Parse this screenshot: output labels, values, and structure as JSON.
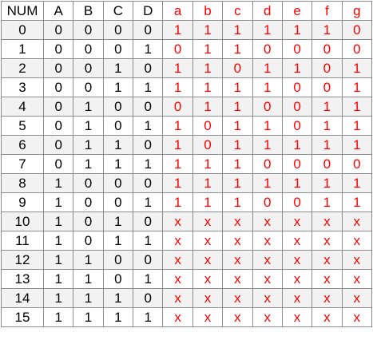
{
  "headers": [
    "NUM",
    "A",
    "B",
    "C",
    "D",
    "a",
    "b",
    "c",
    "d",
    "e",
    "f",
    "g"
  ],
  "input_count": 5,
  "colors": {
    "input_text": "#000000",
    "output_text": "#ff0000",
    "stripe": "#f2f2f2",
    "grid": "#8c8c8c"
  },
  "rows": [
    [
      "0",
      "0",
      "0",
      "0",
      "0",
      "1",
      "1",
      "1",
      "1",
      "1",
      "1",
      "0"
    ],
    [
      "1",
      "0",
      "0",
      "0",
      "1",
      "0",
      "1",
      "1",
      "0",
      "0",
      "0",
      "0"
    ],
    [
      "2",
      "0",
      "0",
      "1",
      "0",
      "1",
      "1",
      "0",
      "1",
      "1",
      "0",
      "1"
    ],
    [
      "3",
      "0",
      "0",
      "1",
      "1",
      "1",
      "1",
      "1",
      "1",
      "0",
      "0",
      "1"
    ],
    [
      "4",
      "0",
      "1",
      "0",
      "0",
      "0",
      "1",
      "1",
      "0",
      "0",
      "1",
      "1"
    ],
    [
      "5",
      "0",
      "1",
      "0",
      "1",
      "1",
      "0",
      "1",
      "1",
      "0",
      "1",
      "1"
    ],
    [
      "6",
      "0",
      "1",
      "1",
      "0",
      "1",
      "0",
      "1",
      "1",
      "1",
      "1",
      "1"
    ],
    [
      "7",
      "0",
      "1",
      "1",
      "1",
      "1",
      "1",
      "1",
      "0",
      "0",
      "0",
      "0"
    ],
    [
      "8",
      "1",
      "0",
      "0",
      "0",
      "1",
      "1",
      "1",
      "1",
      "1",
      "1",
      "1"
    ],
    [
      "9",
      "1",
      "0",
      "0",
      "1",
      "1",
      "1",
      "1",
      "0",
      "0",
      "1",
      "1"
    ],
    [
      "10",
      "1",
      "0",
      "1",
      "0",
      "x",
      "x",
      "x",
      "x",
      "x",
      "x",
      "x"
    ],
    [
      "11",
      "1",
      "0",
      "1",
      "1",
      "x",
      "x",
      "x",
      "x",
      "x",
      "x",
      "x"
    ],
    [
      "12",
      "1",
      "1",
      "0",
      "0",
      "x",
      "x",
      "x",
      "x",
      "x",
      "x",
      "x"
    ],
    [
      "13",
      "1",
      "1",
      "0",
      "1",
      "x",
      "x",
      "x",
      "x",
      "x",
      "x",
      "x"
    ],
    [
      "14",
      "1",
      "1",
      "1",
      "0",
      "x",
      "x",
      "x",
      "x",
      "x",
      "x",
      "x"
    ],
    [
      "15",
      "1",
      "1",
      "1",
      "1",
      "x",
      "x",
      "x",
      "x",
      "x",
      "x",
      "x"
    ]
  ]
}
